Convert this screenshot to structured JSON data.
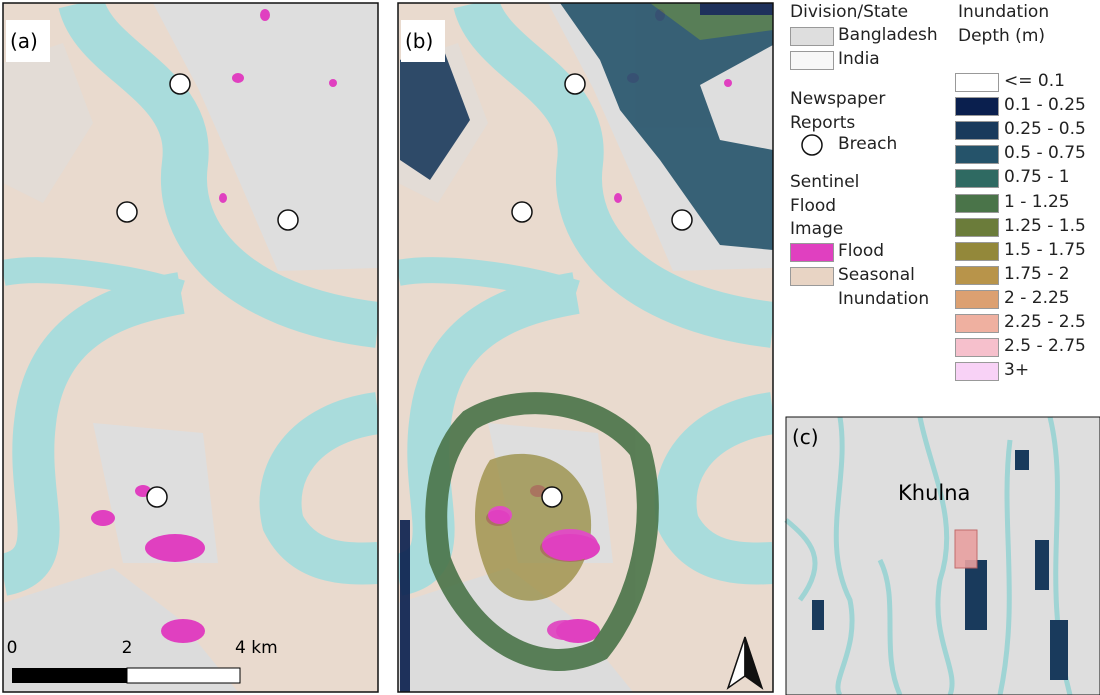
{
  "panel_labels": [
    "(a)",
    "(b)",
    "(c)"
  ],
  "scale_bar": {
    "labels": [
      "0",
      "2",
      "4 km"
    ]
  },
  "inset": {
    "place": "Khulna"
  },
  "legend": {
    "division": {
      "title": "Division/State",
      "items": [
        {
          "label": "Bangladesh",
          "color": "#dedede"
        },
        {
          "label": "India",
          "color": "#f7f7f7"
        }
      ]
    },
    "reports": {
      "title": "Newspaper Reports",
      "items": [
        "Breach"
      ]
    },
    "sentinel": {
      "title": "Sentinel Flood Image",
      "items": [
        {
          "label": "Flood",
          "color": "#e040c0"
        },
        {
          "label": "Seasonal Inundation",
          "color": "#e8d4c4"
        }
      ]
    },
    "depth": {
      "title": "Inundation Depth (m)",
      "classes": [
        {
          "label": "<= 0.1",
          "color": "#ffffff"
        },
        {
          "label": "0.1 - 0.25",
          "color": "#0a1f4e"
        },
        {
          "label": "0.25 - 0.5",
          "color": "#193a5c"
        },
        {
          "label": "0.5 - 0.75",
          "color": "#25536a"
        },
        {
          "label": "0.75 - 1",
          "color": "#2f6a62"
        },
        {
          "label": "1 - 1.25",
          "color": "#4a7449"
        },
        {
          "label": "1.25 - 1.5",
          "color": "#6b7c3a"
        },
        {
          "label": "1.5 - 1.75",
          "color": "#93883a"
        },
        {
          "label": "1.75 - 2",
          "color": "#b8944a"
        },
        {
          "label": "2 - 2.25",
          "color": "#dca071"
        },
        {
          "label": "2.25 - 2.5",
          "color": "#efb0a0"
        },
        {
          "label": "2.5 - 2.75",
          "color": "#f6c0cc"
        },
        {
          "label": "3+",
          "color": "#f8d2f6"
        }
      ]
    }
  }
}
